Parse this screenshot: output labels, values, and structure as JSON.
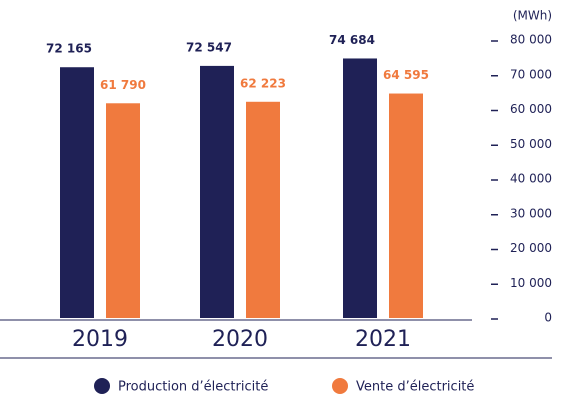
{
  "chart_data": {
    "type": "bar",
    "unit_label": "(MWh)",
    "categories": [
      "2019",
      "2020",
      "2021"
    ],
    "series": [
      {
        "name": "Production d’électricité",
        "color": "#1f2156",
        "values": [
          72165,
          72547,
          74684
        ],
        "value_labels": [
          "72 165",
          "72 547",
          "74 684"
        ]
      },
      {
        "name": "Vente d’électricité",
        "color": "#f07a3e",
        "values": [
          61790,
          62223,
          64595
        ],
        "value_labels": [
          "61 790",
          "62 223",
          "64 595"
        ]
      }
    ],
    "ylim": [
      0,
      80000
    ],
    "yticks": [
      {
        "value": 0,
        "label": "0"
      },
      {
        "value": 10000,
        "label": "10 000"
      },
      {
        "value": 20000,
        "label": "20 000"
      },
      {
        "value": 30000,
        "label": "30 000"
      },
      {
        "value": 40000,
        "label": "40 000"
      },
      {
        "value": 50000,
        "label": "50 000"
      },
      {
        "value": 60000,
        "label": "60 000"
      },
      {
        "value": 70000,
        "label": "70 000"
      },
      {
        "value": 80000,
        "label": "80 000"
      }
    ],
    "legend": "bottom"
  }
}
